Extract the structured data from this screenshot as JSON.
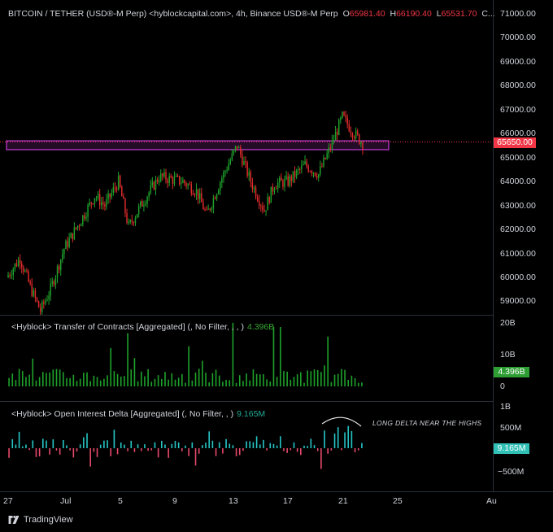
{
  "header": {
    "title": "BITCOIN / TETHER (USD®-M Perp) <hyblockcapital.com>, 4h, Binance USD®-M Perp",
    "open_label": "O",
    "open": "65981.40",
    "high_label": "H",
    "high": "66190.40",
    "low_label": "L",
    "low": "65531.70",
    "close_label": "C..."
  },
  "price_axis": {
    "ticks": [
      "71000.00",
      "70000.00",
      "69000.00",
      "68000.00",
      "67000.00",
      "66000.00",
      "65000.00",
      "64000.00",
      "63000.00",
      "62000.00",
      "61000.00",
      "60000.00",
      "59000.00"
    ],
    "current_price": "65650.00"
  },
  "volume_pane": {
    "title": "<Hyblock> Transfer of Contracts [Aggregated] (, No Filter, , , )",
    "value": "4.396B",
    "ticks": [
      "20B",
      "10B",
      "0"
    ],
    "badge": "4.396B"
  },
  "oi_pane": {
    "title": "<Hyblock> Open Interest Delta [Aggregated] (, No Filter, , )",
    "value": "9.165M",
    "ticks": [
      "1B",
      "500M",
      "−500M"
    ],
    "badge": "9.165M",
    "annotation": "LONG DELTA NEAR THE HIGHS"
  },
  "time_axis": {
    "ticks": [
      "27",
      "Jul",
      "5",
      "9",
      "13",
      "17",
      "21",
      "25",
      "Au"
    ]
  },
  "footer": {
    "brand": "TradingView"
  },
  "colors": {
    "up": "#1fa22b",
    "down": "#e02b2b",
    "zone": "#c63dd8",
    "oi_up": "#26c6c6",
    "oi_down": "#e8496b"
  }
}
